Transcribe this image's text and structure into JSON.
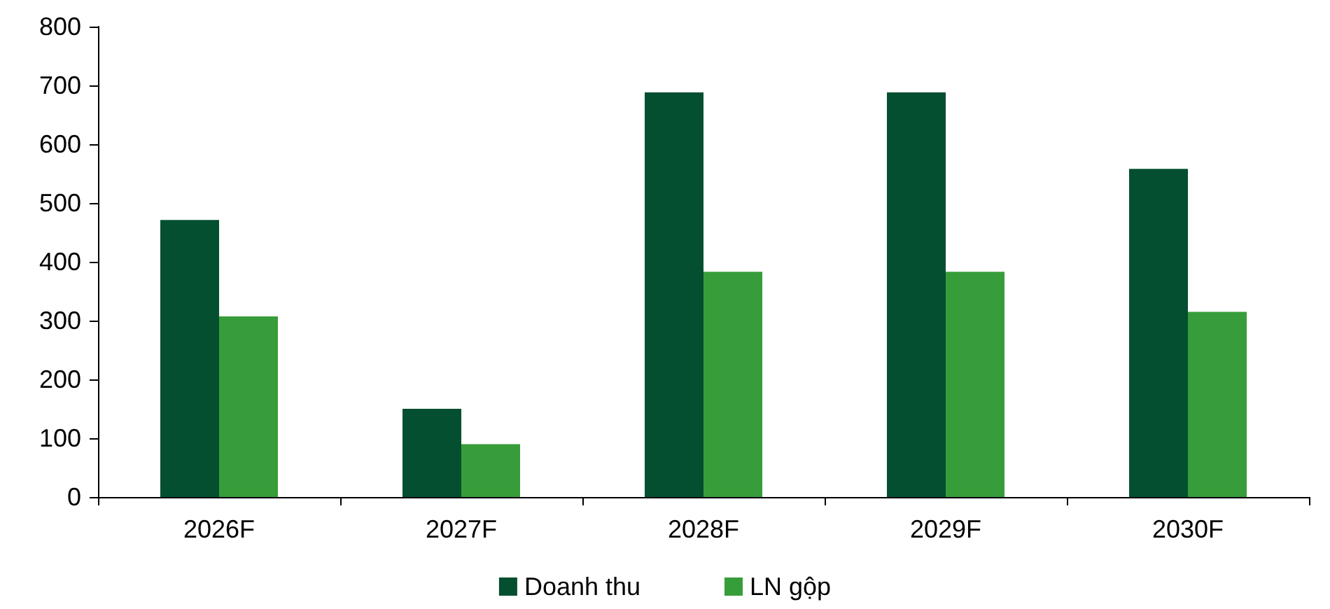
{
  "chart_data": {
    "type": "bar",
    "categories": [
      "2026F",
      "2027F",
      "2028F",
      "2029F",
      "2030F"
    ],
    "series": [
      {
        "name": "Doanh thu",
        "color": "#034f30",
        "values": [
          471,
          150,
          688,
          688,
          558
        ]
      },
      {
        "name": "LN gộp",
        "color": "#379d3a",
        "values": [
          307,
          90,
          383,
          383,
          315
        ]
      }
    ],
    "ylim": [
      0,
      800
    ],
    "yticks": [
      0,
      100,
      200,
      300,
      400,
      500,
      600,
      700,
      800
    ],
    "grid": false,
    "legend": "bottom"
  }
}
